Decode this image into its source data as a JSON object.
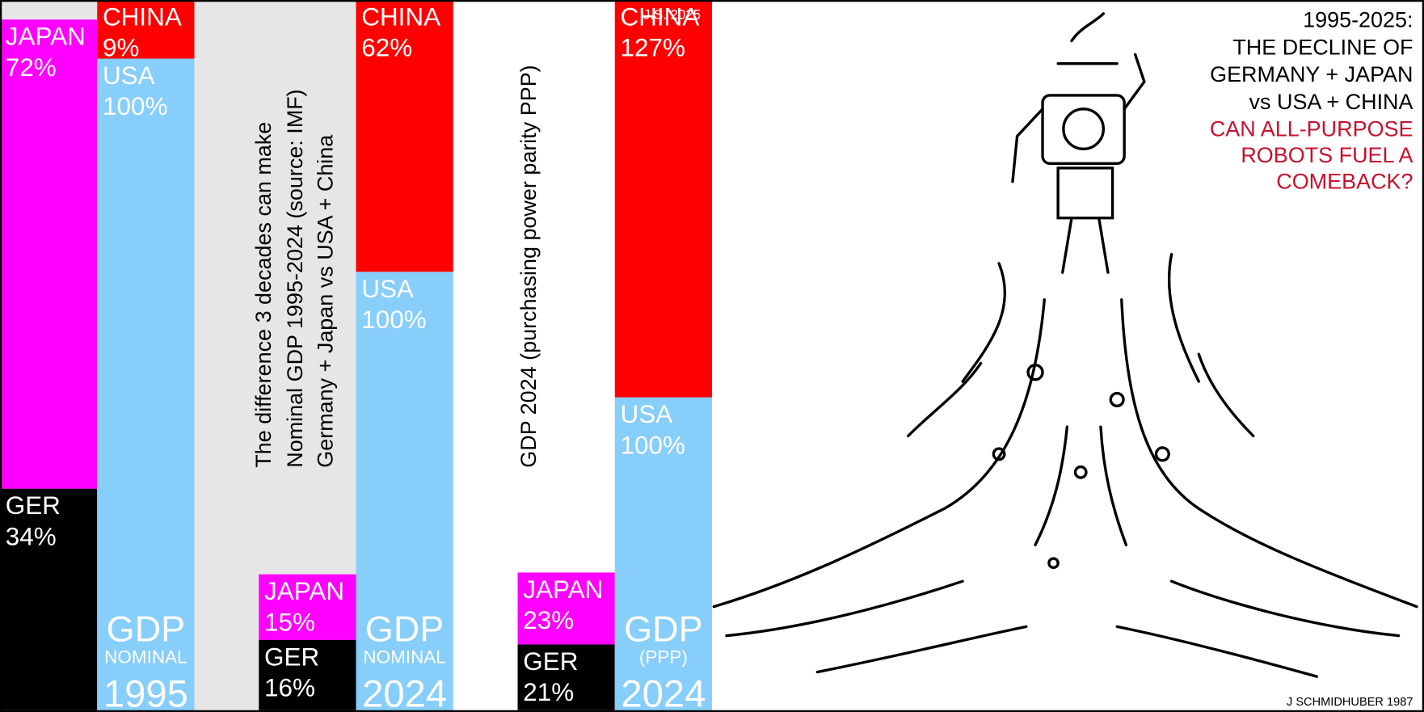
{
  "chart_data": {
    "type": "bar",
    "stacked": true,
    "title": [
      "1995-2025:",
      "THE DECLINE OF",
      "GERMANY + JAPAN",
      "vs USA + CHINA"
    ],
    "subtitle": [
      "CAN ALL-PURPOSE",
      "ROBOTS FUEL A",
      "COMEBACK?"
    ],
    "categories": [
      [
        "GDP",
        "NOMINAL",
        "1995"
      ],
      [
        "GDP",
        "NOMINAL",
        "2024"
      ],
      [
        "GDP",
        "(PPP)",
        "2024"
      ]
    ],
    "notes": [
      [
        "The difference 3 decades can make",
        "Nominal GDP 1995-2024 (source: IMF)",
        "Germany + Japan   vs   USA + China"
      ],
      [
        "GDP 2024 (purchasing power parity PPP)"
      ]
    ],
    "credits": [
      "J.S. 2025",
      "J SCHMIDHUBER 1987"
    ],
    "series": [
      {
        "name": "GER",
        "color": "#000000",
        "stack": "left",
        "values": [
          34,
          16,
          21
        ],
        "value_labels": [
          "34%",
          "16%",
          "21%"
        ]
      },
      {
        "name": "JAPAN",
        "color": "#ff00ff",
        "stack": "left",
        "values": [
          72,
          15,
          23
        ],
        "value_labels": [
          "72%",
          "15%",
          "23%"
        ]
      },
      {
        "name": "USA",
        "color": "#87cefa",
        "stack": "right",
        "values": [
          100,
          100,
          100
        ],
        "value_labels": [
          "100%",
          "100%",
          "100%"
        ]
      },
      {
        "name": "CHINA",
        "color": "#ff0000",
        "stack": "right",
        "values": [
          9,
          62,
          127
        ],
        "value_labels": [
          "9%",
          "62%",
          "127%"
        ]
      }
    ]
  }
}
